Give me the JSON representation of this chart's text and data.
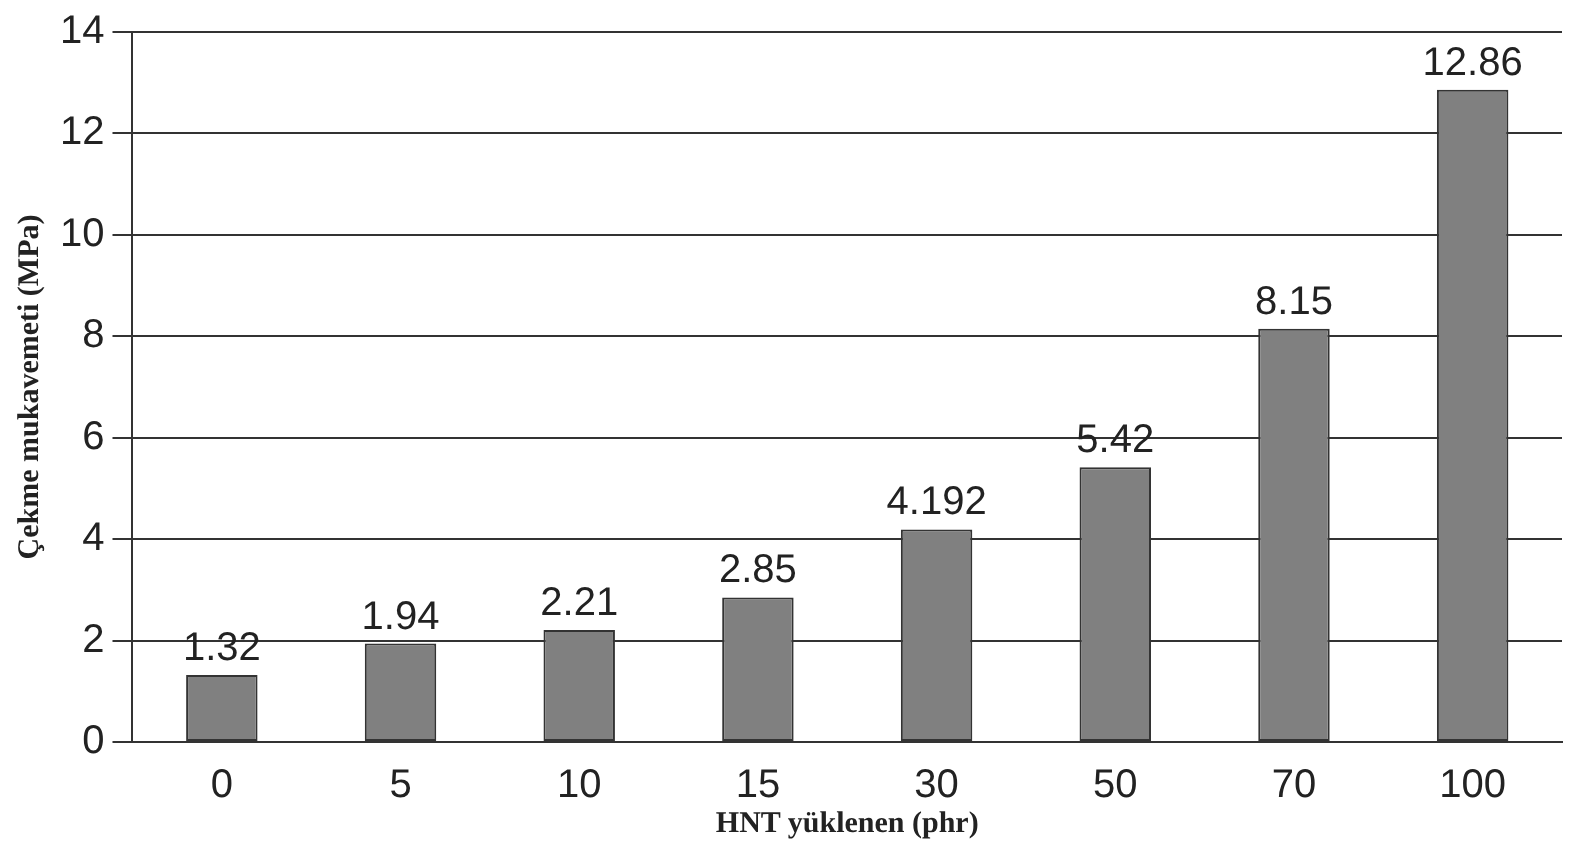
{
  "chart_data": {
    "type": "bar",
    "xlabel": "HNT yüklenen (phr)",
    "ylabel": "Çekme mukavemeti (MPa)",
    "categories": [
      "0",
      "5",
      "10",
      "15",
      "30",
      "50",
      "70",
      "100"
    ],
    "values": [
      1.32,
      1.94,
      2.21,
      2.85,
      4.192,
      5.42,
      8.15,
      12.86
    ],
    "color": "#808080",
    "ylim": [
      0,
      14
    ],
    "yticks": [
      0,
      2,
      4,
      6,
      8,
      10,
      12,
      14
    ],
    "grid": "y",
    "data_labels": true,
    "legend": false
  }
}
